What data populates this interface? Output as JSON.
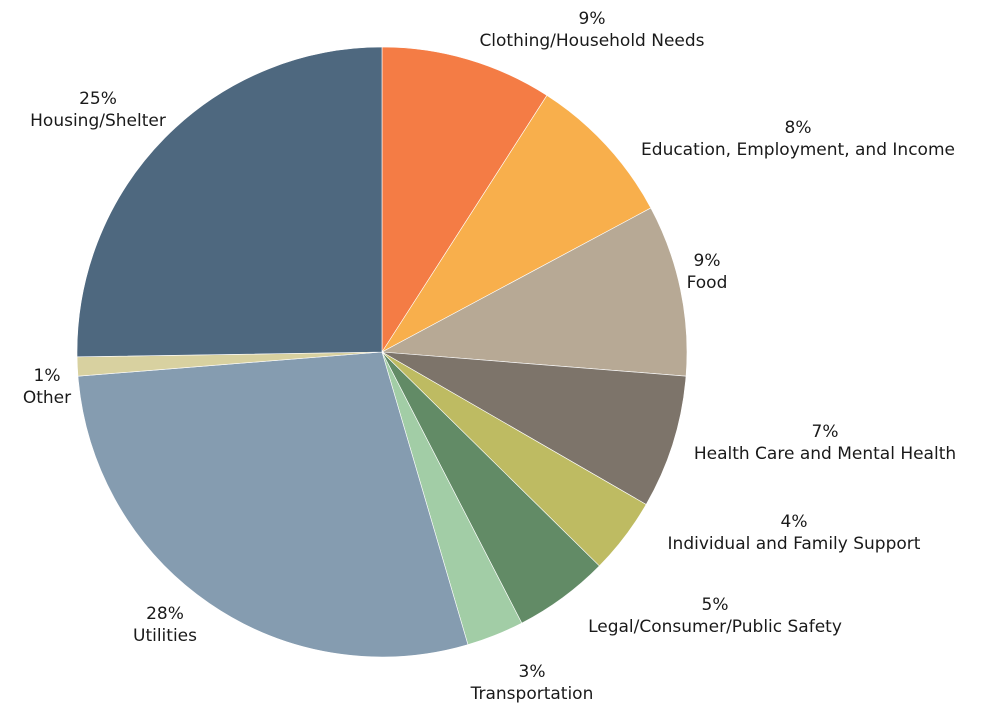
{
  "chart_data": {
    "type": "pie",
    "start_angle_deg": 0,
    "direction": "clockwise",
    "slices": [
      {
        "name": "Clothing/Household Needs",
        "value": 9,
        "pct_label": "9%",
        "color": "#F47C45"
      },
      {
        "name": "Education, Employment, and Income",
        "value": 8,
        "pct_label": "8%",
        "color": "#F8AF4C"
      },
      {
        "name": "Food",
        "value": 9,
        "pct_label": "9%",
        "color": "#B7A995"
      },
      {
        "name": "Health Care and Mental Health",
        "value": 7,
        "pct_label": "7%",
        "color": "#7D746A"
      },
      {
        "name": "Individual and Family Support",
        "value": 4,
        "pct_label": "4%",
        "color": "#BEBB62"
      },
      {
        "name": "Legal/Consumer/Public Safety",
        "value": 5,
        "pct_label": "5%",
        "color": "#628B66"
      },
      {
        "name": "Transportation",
        "value": 3,
        "pct_label": "3%",
        "color": "#A2CDA6"
      },
      {
        "name": "Utilities",
        "value": 28,
        "pct_label": "28%",
        "color": "#859CB0"
      },
      {
        "name": "Other",
        "value": 1,
        "pct_label": "1%",
        "color": "#D8D1A0"
      },
      {
        "name": "Housing/Shelter",
        "value": 25,
        "pct_label": "25%",
        "color": "#4E687F"
      }
    ]
  }
}
